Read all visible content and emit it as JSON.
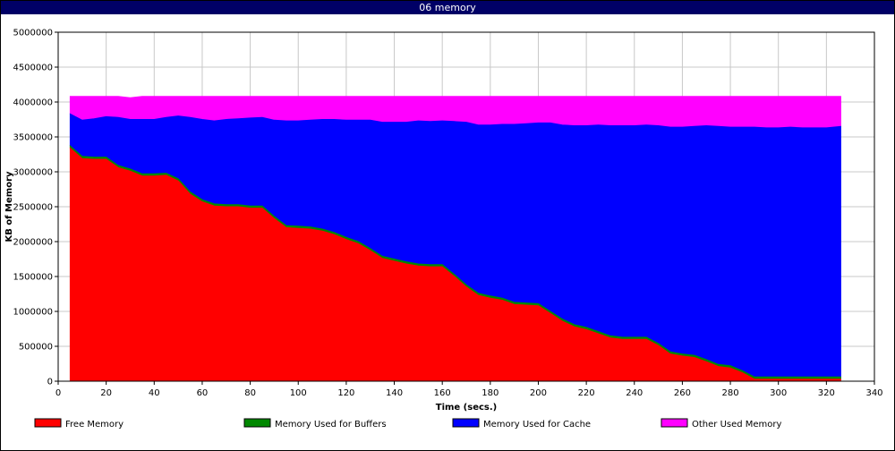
{
  "window": {
    "title": "06 memory"
  },
  "chart_data": {
    "type": "area",
    "stacked": true,
    "title": "06 memory",
    "xlabel": "Time (secs.)",
    "ylabel": "KB of Memory",
    "xlim": [
      0,
      340
    ],
    "ylim": [
      0,
      5000000
    ],
    "xticks": [
      0,
      20,
      40,
      60,
      80,
      100,
      120,
      140,
      160,
      180,
      200,
      220,
      240,
      260,
      280,
      300,
      320,
      340
    ],
    "yticks": [
      0,
      500000,
      1000000,
      1500000,
      2000000,
      2500000,
      3000000,
      3500000,
      4000000,
      4500000,
      5000000
    ],
    "grid": true,
    "legend_position": "bottom",
    "x": [
      5,
      10,
      15,
      20,
      25,
      30,
      35,
      40,
      45,
      50,
      55,
      60,
      65,
      70,
      75,
      80,
      85,
      90,
      95,
      100,
      105,
      110,
      115,
      120,
      125,
      130,
      135,
      140,
      145,
      150,
      155,
      160,
      165,
      170,
      175,
      180,
      185,
      190,
      195,
      200,
      205,
      210,
      215,
      220,
      225,
      230,
      235,
      240,
      245,
      250,
      255,
      260,
      265,
      270,
      275,
      280,
      285,
      290,
      295,
      300,
      305,
      310,
      315,
      320,
      326
    ],
    "series": [
      {
        "name": "Free Memory",
        "color": "#ff0000",
        "values": [
          3340000,
          3190000,
          3180000,
          3180000,
          3060000,
          3010000,
          2940000,
          2940000,
          2950000,
          2870000,
          2680000,
          2570000,
          2510000,
          2500000,
          2500000,
          2480000,
          2480000,
          2330000,
          2200000,
          2190000,
          2180000,
          2150000,
          2100000,
          2030000,
          1970000,
          1870000,
          1760000,
          1720000,
          1680000,
          1650000,
          1640000,
          1640000,
          1500000,
          1350000,
          1230000,
          1190000,
          1160000,
          1100000,
          1090000,
          1080000,
          970000,
          860000,
          780000,
          740000,
          680000,
          620000,
          600000,
          600000,
          600000,
          510000,
          390000,
          360000,
          340000,
          280000,
          210000,
          190000,
          120000,
          30000,
          30000,
          30000,
          30000,
          30000,
          30000,
          30000,
          30000
        ]
      },
      {
        "name": "Memory Used for Buffers",
        "color": "#008800",
        "values": [
          30000,
          30000,
          30000,
          30000,
          30000,
          30000,
          30000,
          30000,
          30000,
          30000,
          30000,
          30000,
          30000,
          30000,
          30000,
          30000,
          30000,
          30000,
          30000,
          30000,
          30000,
          30000,
          30000,
          30000,
          30000,
          30000,
          30000,
          30000,
          30000,
          30000,
          30000,
          30000,
          30000,
          30000,
          30000,
          30000,
          30000,
          30000,
          30000,
          30000,
          30000,
          30000,
          30000,
          30000,
          30000,
          30000,
          30000,
          30000,
          30000,
          30000,
          30000,
          30000,
          30000,
          30000,
          30000,
          30000,
          30000,
          30000,
          30000,
          30000,
          30000,
          30000,
          30000,
          30000,
          30000
        ]
      },
      {
        "name": "Memory Used for Cache",
        "color": "#0000ff",
        "values": [
          460000,
          520000,
          550000,
          580000,
          690000,
          710000,
          780000,
          780000,
          800000,
          900000,
          1070000,
          1150000,
          1190000,
          1220000,
          1230000,
          1260000,
          1270000,
          1380000,
          1500000,
          1510000,
          1530000,
          1570000,
          1620000,
          1680000,
          1740000,
          1840000,
          1920000,
          1960000,
          2000000,
          2050000,
          2050000,
          2060000,
          2190000,
          2330000,
          2410000,
          2450000,
          2490000,
          2550000,
          2570000,
          2590000,
          2700000,
          2780000,
          2850000,
          2890000,
          2960000,
          3010000,
          3030000,
          3030000,
          3040000,
          3120000,
          3220000,
          3250000,
          3280000,
          3350000,
          3410000,
          3420000,
          3490000,
          3580000,
          3570000,
          3570000,
          3580000,
          3570000,
          3570000,
          3570000,
          3590000
        ]
      },
      {
        "name": "Other Used Memory",
        "color": "#ff00ff",
        "values": [
          250000,
          340000,
          320000,
          290000,
          300000,
          310000,
          330000,
          330000,
          300000,
          280000,
          300000,
          330000,
          350000,
          330000,
          320000,
          310000,
          300000,
          340000,
          350000,
          350000,
          340000,
          330000,
          330000,
          340000,
          340000,
          340000,
          370000,
          370000,
          370000,
          350000,
          360000,
          350000,
          360000,
          370000,
          410000,
          410000,
          400000,
          400000,
          390000,
          380000,
          380000,
          410000,
          420000,
          420000,
          410000,
          420000,
          420000,
          420000,
          410000,
          420000,
          440000,
          440000,
          430000,
          420000,
          430000,
          440000,
          440000,
          440000,
          450000,
          450000,
          440000,
          450000,
          450000,
          450000,
          430000
        ]
      }
    ]
  }
}
